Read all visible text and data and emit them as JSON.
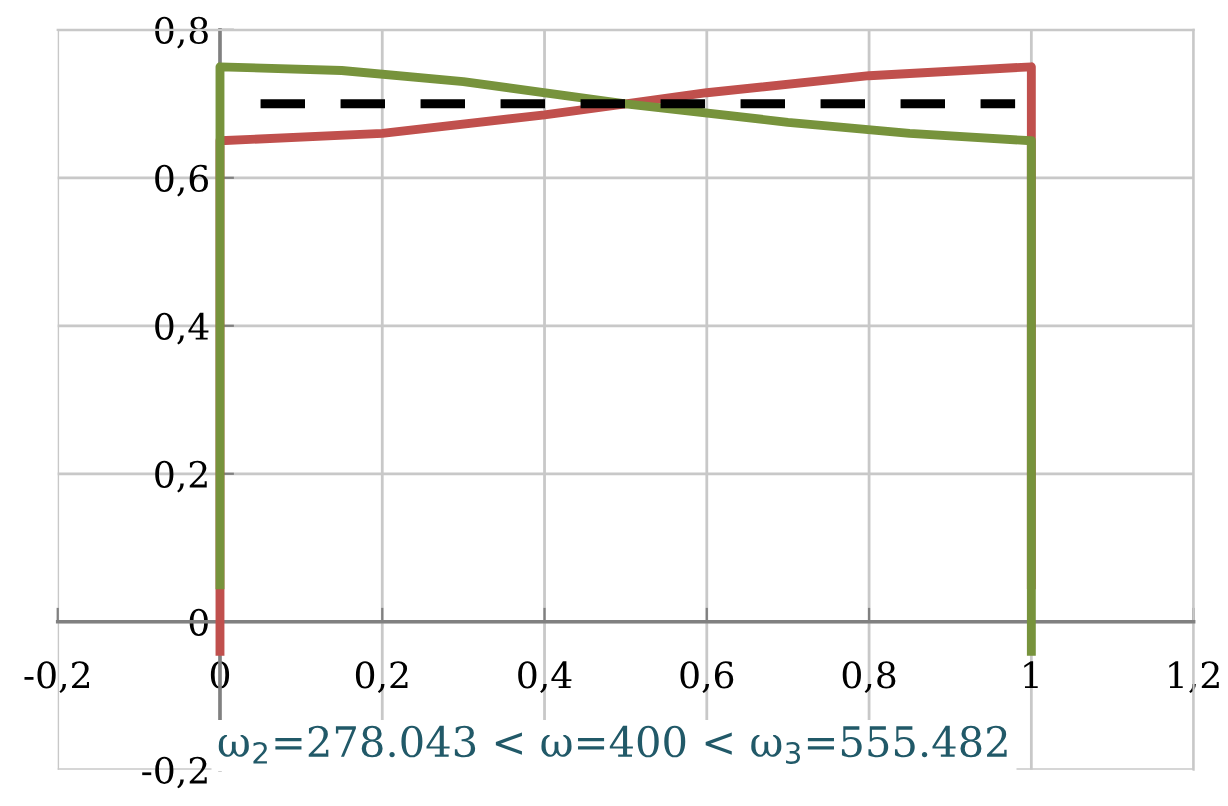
{
  "chart_data": {
    "type": "line",
    "series": [
      {
        "color": "#c0504d",
        "x": [
          0,
          0,
          0.2,
          0.4,
          0.5,
          0.6,
          0.8,
          1,
          1
        ],
        "values": [
          -0.04,
          0.65,
          0.66,
          0.685,
          0.7,
          0.715,
          0.738,
          0.75,
          0.05
        ],
        "line_style": "solid"
      },
      {
        "color": "#77933c",
        "x": [
          0,
          0,
          0.15,
          0.3,
          0.5,
          0.7,
          0.85,
          1,
          1
        ],
        "values": [
          0.05,
          0.75,
          0.745,
          0.73,
          0.7,
          0.675,
          0.66,
          0.65,
          -0.04
        ],
        "line_style": "solid"
      },
      {
        "color": "#000000",
        "x": [
          0.05,
          0.98
        ],
        "values": [
          0.7,
          0.7
        ],
        "line_style": "dashed"
      }
    ],
    "xlim": [
      -0.2,
      1.2
    ],
    "ylim": [
      -0.2,
      0.8
    ],
    "xticks": [
      {
        "value": -0.2,
        "label": "-0,2"
      },
      0,
      {
        "value": 0.2,
        "label": "0,2"
      },
      {
        "value": 0.4,
        "label": "0,4"
      },
      {
        "value": 0.6,
        "label": "0,6"
      },
      {
        "value": 0.8,
        "label": "0,8"
      },
      1,
      {
        "value": 1.2,
        "label": "1,2"
      }
    ],
    "yticks": [
      {
        "value": -0.2,
        "label": "-0,2"
      },
      0,
      {
        "value": 0.2,
        "label": "0,2"
      },
      {
        "value": 0.4,
        "label": "0,4"
      },
      {
        "value": 0.6,
        "label": "0,6"
      },
      {
        "value": 0.8,
        "label": "0,8"
      }
    ],
    "grid": true,
    "annotations": [
      "ω$_{2}$=278.043 < ω=400 < ω$_{3}$=555.482"
    ]
  }
}
